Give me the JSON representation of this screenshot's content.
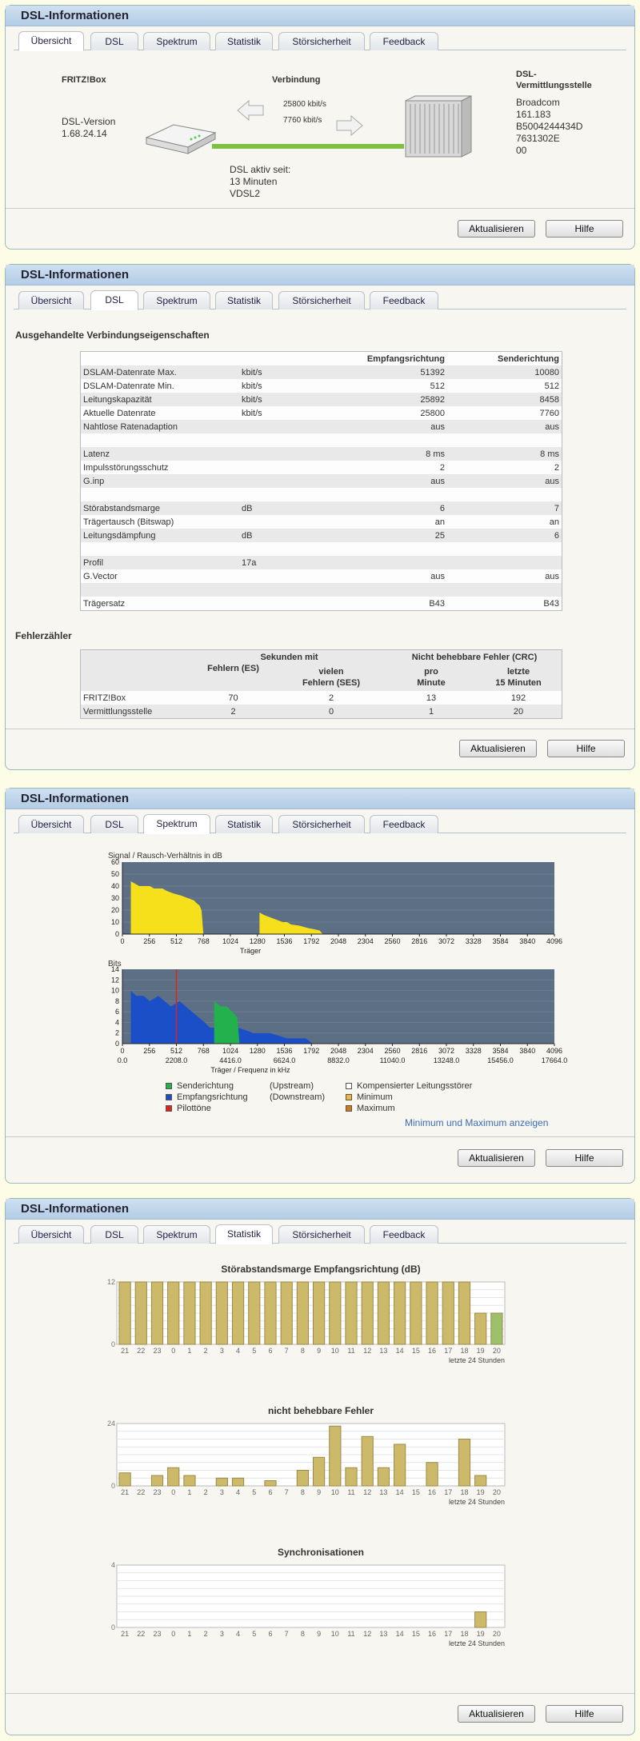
{
  "panel_title": "DSL-Informationen",
  "tabs": [
    "Übersicht",
    "DSL",
    "Spektrum",
    "Statistik",
    "Störsicherheit",
    "Feedback"
  ],
  "buttons": {
    "refresh": "Aktualisieren",
    "help": "Hilfe"
  },
  "overview": {
    "fritzbox_label": "FRITZ!Box",
    "connection_label": "Verbindung",
    "dslam_label": "DSL-\nVermittlungsstelle",
    "dsl_version_label": "DSL-Version",
    "dsl_version": "1.68.24.14",
    "down_rate": "25800 kbit/s",
    "up_rate": "7760 kbit/s",
    "dslam_vendor": "Broadcom",
    "dslam_ver": "161.183",
    "dslam_id1": "B5004244434D",
    "dslam_id2": "7631302E",
    "dslam_id3": "00",
    "active_since_label": "DSL aktiv seit:",
    "active_since": "13 Minuten",
    "mode": "VDSL2",
    "colors": {
      "line": "#7dc142",
      "arrow": "#e0e0e0"
    }
  },
  "dsl": {
    "section_title": "Ausgehandelte Verbindungseigenschaften",
    "col_down": "Empfangsrichtung",
    "col_up": "Senderichtung",
    "rows": [
      [
        "DSLAM-Datenrate Max.",
        "kbit/s",
        "51392",
        "10080"
      ],
      [
        "DSLAM-Datenrate Min.",
        "kbit/s",
        "512",
        "512"
      ],
      [
        "Leitungskapazität",
        "kbit/s",
        "25892",
        "8458"
      ],
      [
        "Aktuelle Datenrate",
        "kbit/s",
        "25800",
        "7760"
      ],
      [
        "Nahtlose Ratenadaption",
        "",
        "aus",
        "aus"
      ],
      [
        "",
        "",
        "",
        ""
      ],
      [
        "Latenz",
        "",
        "8 ms",
        "8 ms"
      ],
      [
        "Impulsstörungsschutz",
        "",
        "2",
        "2"
      ],
      [
        "G.inp",
        "",
        "aus",
        "aus"
      ],
      [
        "",
        "",
        "",
        ""
      ],
      [
        "Störabstandsmarge",
        "dB",
        "6",
        "7"
      ],
      [
        "Trägertausch (Bitswap)",
        "",
        "an",
        "an"
      ],
      [
        "Leitungsdämpfung",
        "dB",
        "25",
        "6"
      ],
      [
        "",
        "",
        "",
        ""
      ],
      [
        "Profil",
        "17a",
        "",
        ""
      ],
      [
        "G.Vector",
        "",
        "aus",
        "aus"
      ],
      [
        "",
        "",
        "",
        ""
      ],
      [
        "Trägersatz",
        "",
        "B43",
        "B43"
      ]
    ],
    "errors_title": "Fehlerzähler",
    "err_head_sec": "Sekunden mit",
    "err_head_crc": "Nicht behebbare Fehler (CRC)",
    "err_sub": [
      "Fehlern (ES)",
      "vielen\nFehlern (SES)",
      "pro\nMinute",
      "letzte\n15 Minuten"
    ],
    "err_rows": [
      [
        "FRITZ!Box",
        "70",
        "2",
        "13",
        "192"
      ],
      [
        "Vermittlungsstelle",
        "2",
        "0",
        "1",
        "20"
      ]
    ]
  },
  "spectrum": {
    "snr_title": "Signal / Rausch-Verhältnis in dB",
    "bits_title": "Bits",
    "x_label1": "Träger",
    "x_label2": "Träger / Frequenz in kHz",
    "legend": [
      {
        "label": "Senderichtung",
        "extra": "(Upstream)",
        "color": "#22b14c"
      },
      {
        "label": "Empfangsrichtung",
        "extra": "(Downstream)",
        "color": "#1a4fc8"
      },
      {
        "label": "Pilottöne",
        "extra": "",
        "color": "#dd2222"
      },
      {
        "label": "Kompensierter Leitungsstörer",
        "extra": "",
        "color": "#ffffff"
      },
      {
        "label": "Minimum",
        "extra": "",
        "color": "#f2b632"
      },
      {
        "label": "Maximum",
        "extra": "",
        "color": "#d07a10"
      }
    ],
    "minmax_link": "Minimum und Maximum anzeigen"
  },
  "chart_data": [
    {
      "type": "area",
      "title": "Signal / Rausch-Verhältnis in dB",
      "xlabel": "Träger",
      "ylim": [
        0,
        60
      ],
      "x_ticks": [
        "0",
        "256",
        "512",
        "768",
        "1024",
        "1280",
        "1536",
        "1792",
        "2048",
        "2304",
        "2560",
        "2816",
        "3072",
        "3328",
        "3584",
        "3840",
        "4096"
      ],
      "y_ticks": [
        "0",
        "10",
        "20",
        "30",
        "40",
        "50",
        "60"
      ],
      "series": [
        {
          "segments": [
            [
              [
                80,
                44
              ],
              [
                120,
                42
              ],
              [
                160,
                40
              ],
              [
                260,
                40
              ],
              [
                300,
                38
              ],
              [
                380,
                38
              ],
              [
                420,
                36
              ],
              [
                480,
                34
              ],
              [
                560,
                32
              ],
              [
                620,
                30
              ],
              [
                680,
                28
              ],
              [
                700,
                26
              ],
              [
                730,
                24
              ],
              [
                750,
                20
              ],
              [
                768,
                0
              ]
            ],
            [
              [
                1300,
                0
              ],
              [
                1300,
                18
              ],
              [
                1340,
                16
              ],
              [
                1400,
                14
              ],
              [
                1460,
                12
              ],
              [
                1520,
                10
              ],
              [
                1560,
                10
              ],
              [
                1600,
                8
              ],
              [
                1680,
                7
              ],
              [
                1760,
                5
              ],
              [
                1820,
                4
              ],
              [
                1870,
                3
              ],
              [
                1900,
                0
              ]
            ]
          ]
        }
      ]
    },
    {
      "type": "area",
      "title": "Bits",
      "xlabel": "Träger / Frequenz in kHz",
      "ylim": [
        0,
        14
      ],
      "x_ticks": [
        "0",
        "256",
        "512",
        "768",
        "1024",
        "1280",
        "1536",
        "1792",
        "2048",
        "2304",
        "2560",
        "2816",
        "3072",
        "3328",
        "3584",
        "3840",
        "4096"
      ],
      "x_ticks2": [
        "0.0",
        "2208.0",
        "4416.0",
        "6624.0",
        "8832.0",
        "11040.0",
        "13248.0",
        "15456.0",
        "17664.0"
      ],
      "y_ticks": [
        "0",
        "2",
        "4",
        "6",
        "8",
        "10",
        "12",
        "14"
      ],
      "series": [
        {
          "name": "Empfangsrichtung",
          "segments": [
            [
              [
                80,
                10
              ],
              [
                130,
                9
              ],
              [
                200,
                9
              ],
              [
                260,
                8
              ],
              [
                340,
                9
              ],
              [
                400,
                8
              ],
              [
                460,
                7
              ],
              [
                540,
                8
              ],
              [
                600,
                7
              ],
              [
                660,
                6
              ],
              [
                720,
                5
              ],
              [
                780,
                4
              ],
              [
                830,
                3
              ],
              [
                900,
                3
              ],
              [
                960,
                3
              ],
              [
                1100,
                3
              ],
              [
                1240,
                2
              ],
              [
                1400,
                2
              ],
              [
                1560,
                1
              ],
              [
                1740,
                1
              ],
              [
                1800,
                0
              ]
            ]
          ]
        },
        {
          "name": "Senderichtung",
          "segments": [
            [
              [
                870,
                0
              ],
              [
                870,
                8
              ],
              [
                930,
                7
              ],
              [
                990,
                7
              ],
              [
                1040,
                6
              ],
              [
                1090,
                5
              ],
              [
                1110,
                0
              ]
            ]
          ]
        }
      ],
      "pilot_tone": 512
    }
  ],
  "statistics": {
    "chart1_title": "Störabstandsmarge Empfangsrichtung (dB)",
    "chart2_title": "nicht behebbare Fehler",
    "chart3_title": "Synchronisationen",
    "last24": "letzte 24 Stunden",
    "hours": [
      "21",
      "22",
      "23",
      "0",
      "1",
      "2",
      "3",
      "4",
      "5",
      "6",
      "7",
      "8",
      "9",
      "10",
      "11",
      "12",
      "13",
      "14",
      "15",
      "16",
      "17",
      "18",
      "19",
      "20"
    ],
    "snr_margin": {
      "type": "bar",
      "ymax": 12,
      "values": [
        12,
        12,
        12,
        12,
        12,
        12,
        12,
        12,
        12,
        12,
        12,
        12,
        12,
        12,
        12,
        12,
        12,
        12,
        12,
        12,
        12,
        12,
        6,
        6
      ],
      "y_ticks": [
        "0",
        "12"
      ]
    },
    "errors": {
      "type": "bar",
      "ymax": 24,
      "values": [
        5,
        0,
        4,
        7,
        4,
        0,
        3,
        3,
        0,
        2,
        0,
        6,
        11,
        23,
        7,
        19,
        7,
        16,
        0,
        9,
        0,
        18,
        4,
        0
      ],
      "y_ticks": [
        "0",
        "24"
      ]
    },
    "syncs": {
      "type": "bar",
      "ymax": 4,
      "values": [
        0,
        0,
        0,
        0,
        0,
        0,
        0,
        0,
        0,
        0,
        0,
        0,
        0,
        0,
        0,
        0,
        0,
        0,
        0,
        0,
        0,
        0,
        1,
        0
      ],
      "y_ticks": [
        "0",
        "4"
      ]
    }
  }
}
